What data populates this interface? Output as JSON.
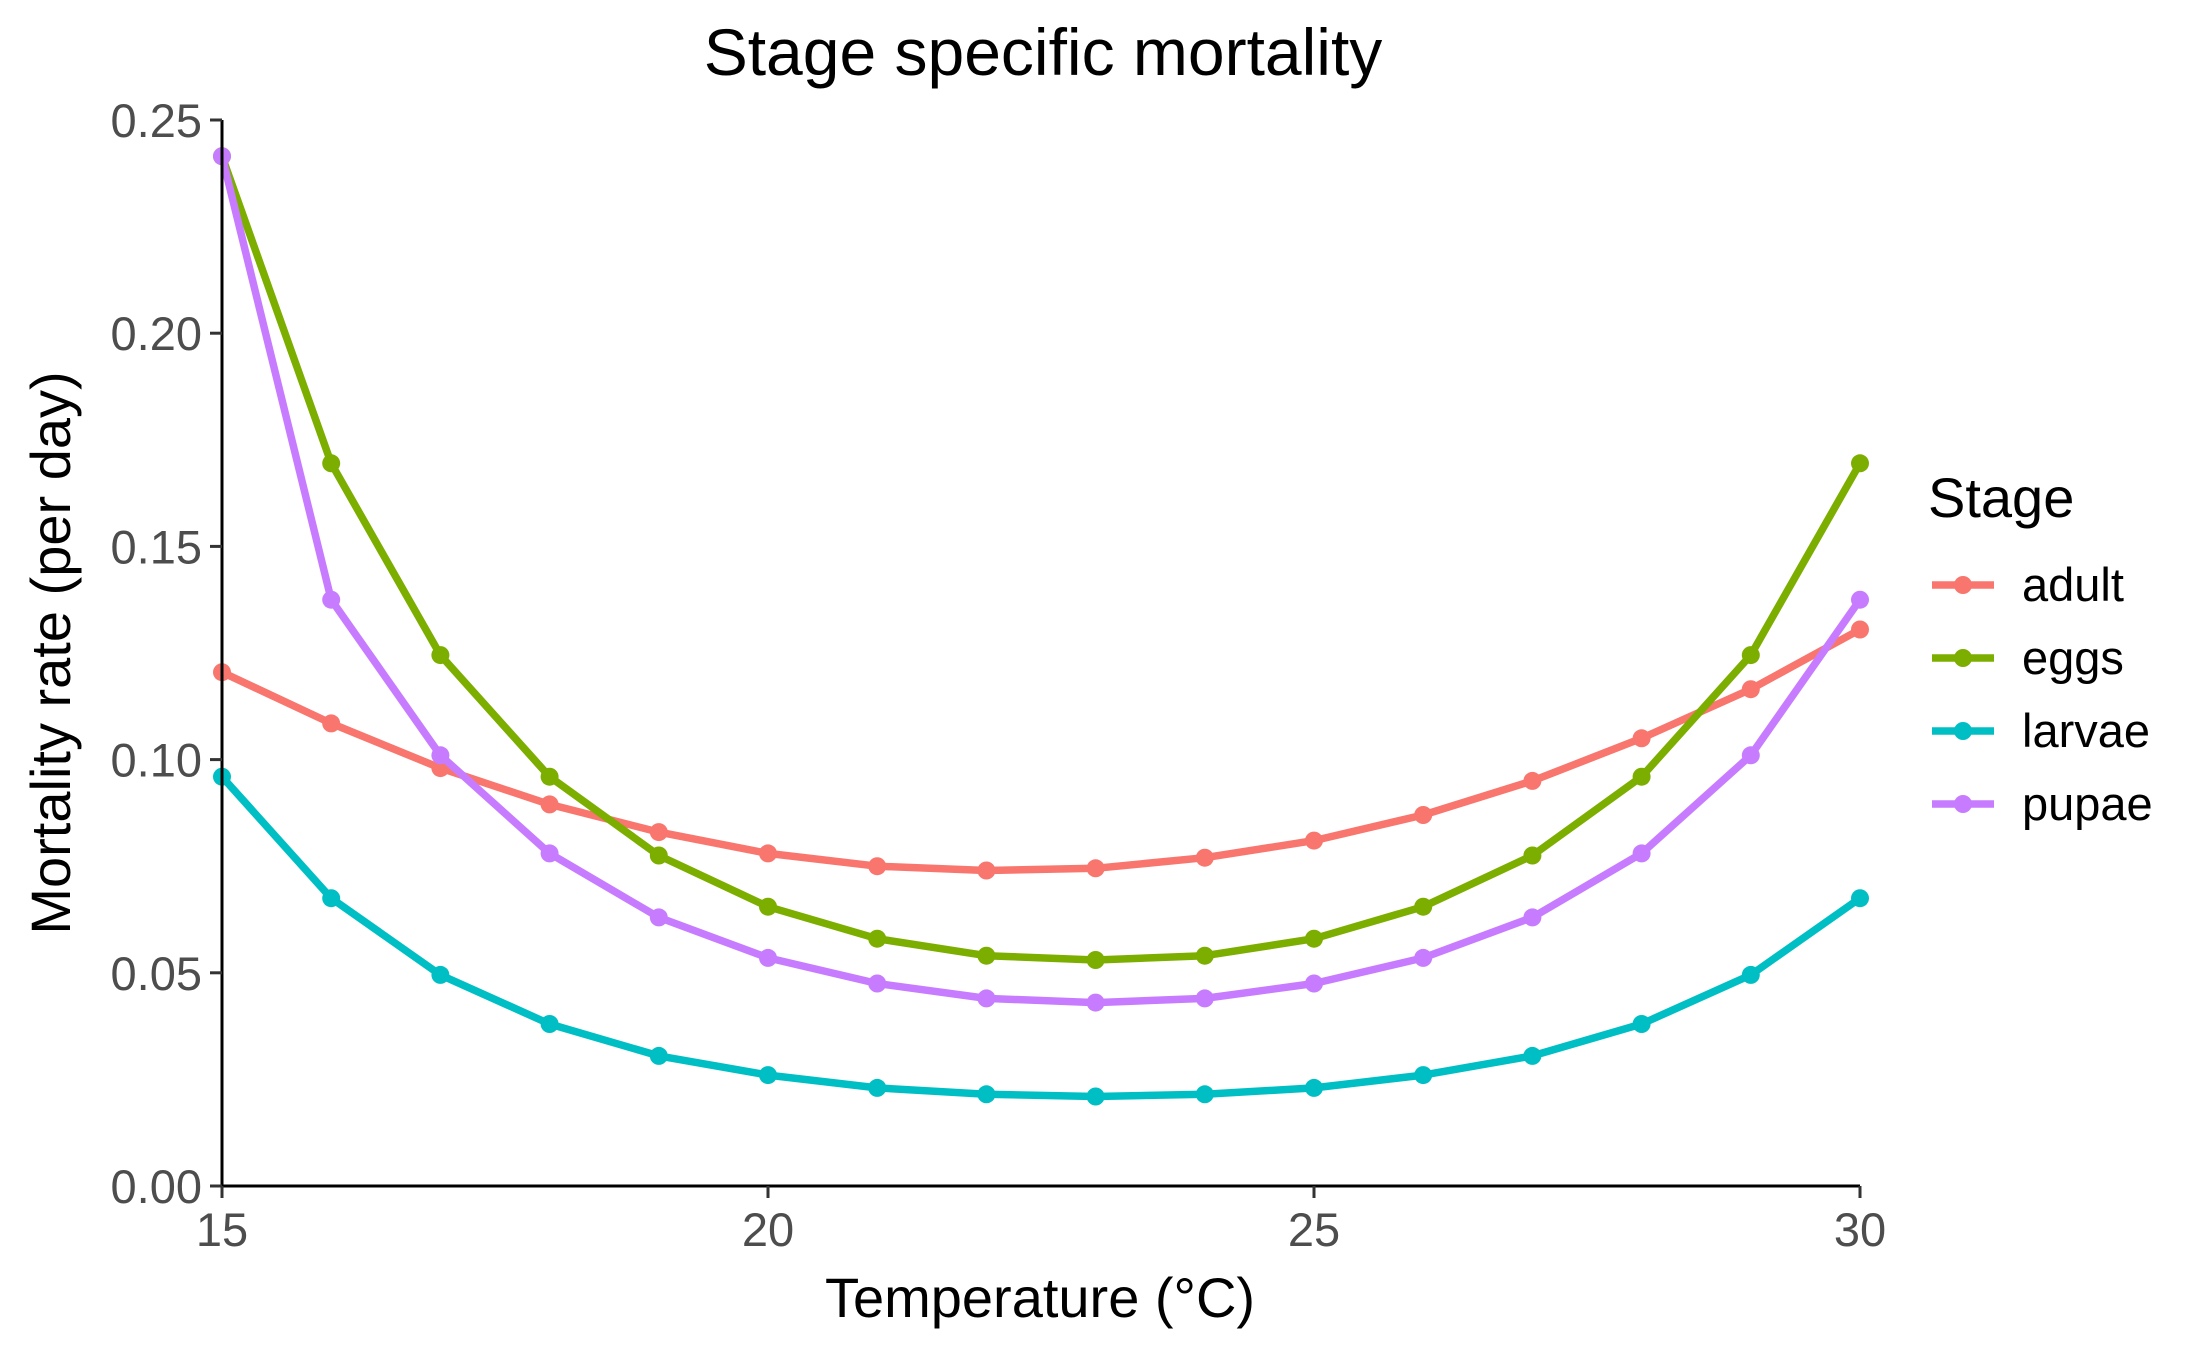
{
  "chart_data": {
    "type": "line",
    "title": "Stage specific mortality",
    "xlabel": "Temperature (°C)",
    "ylabel": "Mortality rate (per day)",
    "xlim": [
      15,
      30
    ],
    "ylim": [
      0,
      0.25
    ],
    "x_ticks": [
      15,
      20,
      25,
      30
    ],
    "x_tick_labels": [
      "15",
      "20",
      "25",
      "30"
    ],
    "y_ticks": [
      0,
      0.05,
      0.1,
      0.15,
      0.2,
      0.25
    ],
    "y_tick_labels": [
      "0.00",
      "0.05",
      "0.10",
      "0.15",
      "0.20",
      "0.25"
    ],
    "grid": false,
    "legend": {
      "title": "Stage",
      "position": "right"
    },
    "x": [
      15,
      16,
      17,
      18,
      19,
      20,
      21,
      22,
      23,
      24,
      25,
      26,
      27,
      28,
      29,
      30
    ],
    "series": [
      {
        "name": "adult",
        "color": "#F8766D",
        "values": [
          0.1205,
          0.1085,
          0.098,
          0.0895,
          0.083,
          0.078,
          0.075,
          0.074,
          0.0745,
          0.077,
          0.081,
          0.087,
          0.095,
          0.105,
          0.1165,
          0.1305
        ]
      },
      {
        "name": "eggs",
        "color": "#7CAE00",
        "values": [
          0.2415,
          0.1695,
          0.1245,
          0.096,
          0.0775,
          0.0655,
          0.058,
          0.054,
          0.053,
          0.054,
          0.058,
          0.0655,
          0.0775,
          0.096,
          0.1245,
          0.1695
        ]
      },
      {
        "name": "larvae",
        "color": "#00BFC4",
        "values": [
          0.096,
          0.0675,
          0.0495,
          0.038,
          0.0305,
          0.026,
          0.023,
          0.0215,
          0.021,
          0.0215,
          0.023,
          0.026,
          0.0305,
          0.038,
          0.0495,
          0.0675
        ]
      },
      {
        "name": "pupae",
        "color": "#C77CFF",
        "values": [
          0.2415,
          0.1375,
          0.101,
          0.078,
          0.063,
          0.0535,
          0.0475,
          0.044,
          0.043,
          0.044,
          0.0475,
          0.0535,
          0.063,
          0.078,
          0.101,
          0.1375
        ]
      }
    ]
  }
}
